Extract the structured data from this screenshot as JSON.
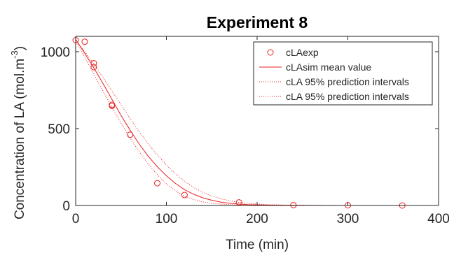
{
  "chart_data": {
    "type": "scatter",
    "title": "Experiment 8",
    "xlabel": "Time (min)",
    "ylabel_main": "Concentration of LA (mol.m",
    "ylabel_sup": "-3",
    "ylabel_close": ")",
    "xlim": [
      0,
      400
    ],
    "ylim": [
      0,
      1100
    ],
    "xticks": [
      0,
      100,
      200,
      300,
      400
    ],
    "yticks": [
      0,
      500,
      1000
    ],
    "xtick_labels": [
      "0",
      "100",
      "200",
      "300",
      "400"
    ],
    "ytick_labels": [
      "0",
      "500",
      "1000"
    ],
    "grid": false,
    "legend_position": "top-right",
    "color": "#e8201f",
    "series": [
      {
        "name": "cLAexp",
        "kind": "markers",
        "x": [
          0,
          10,
          20,
          20,
          40,
          40,
          60,
          90,
          120,
          180,
          240,
          300,
          360
        ],
        "y": [
          1075,
          1065,
          925,
          900,
          655,
          648,
          460,
          145,
          68,
          20,
          2,
          1,
          0
        ]
      },
      {
        "name": "cLAsim mean value",
        "kind": "line-solid",
        "x": [
          0,
          10,
          20,
          30,
          40,
          50,
          60,
          70,
          80,
          90,
          100,
          110,
          120,
          130,
          140,
          150,
          160,
          170,
          180,
          190,
          200,
          220,
          240,
          270,
          300,
          330,
          360
        ],
        "y": [
          1080,
          990,
          895,
          795,
          690,
          585,
          490,
          400,
          320,
          252,
          193,
          143,
          103,
          73,
          50,
          34,
          22,
          14,
          9,
          6,
          4,
          2,
          1,
          0,
          0,
          0,
          0
        ]
      },
      {
        "name": "cLA 95% prediction intervals",
        "kind": "line-dotted",
        "x": [
          0,
          10,
          20,
          30,
          40,
          50,
          60,
          70,
          80,
          90,
          100,
          110,
          120,
          130,
          140,
          150,
          160,
          170,
          180,
          190,
          200,
          220,
          240,
          270,
          300,
          330,
          360
        ],
        "y": [
          1075,
          1000,
          920,
          835,
          745,
          655,
          565,
          480,
          400,
          328,
          263,
          205,
          157,
          117,
          85,
          62,
          44,
          30,
          20,
          14,
          9,
          4,
          2,
          1,
          0,
          0,
          0
        ]
      },
      {
        "name": "cLA 95% prediction intervals",
        "kind": "line-dotted",
        "x": [
          0,
          10,
          20,
          30,
          40,
          50,
          60,
          70,
          80,
          90,
          100,
          110,
          120,
          130,
          140,
          150,
          160,
          170,
          180,
          190,
          200,
          220,
          240,
          270,
          300,
          330,
          360
        ],
        "y": [
          1075,
          965,
          855,
          745,
          640,
          535,
          438,
          350,
          270,
          200,
          140,
          95,
          60,
          38,
          23,
          14,
          9,
          5,
          3,
          2,
          1,
          0,
          0,
          0,
          0,
          0,
          0
        ]
      }
    ]
  }
}
